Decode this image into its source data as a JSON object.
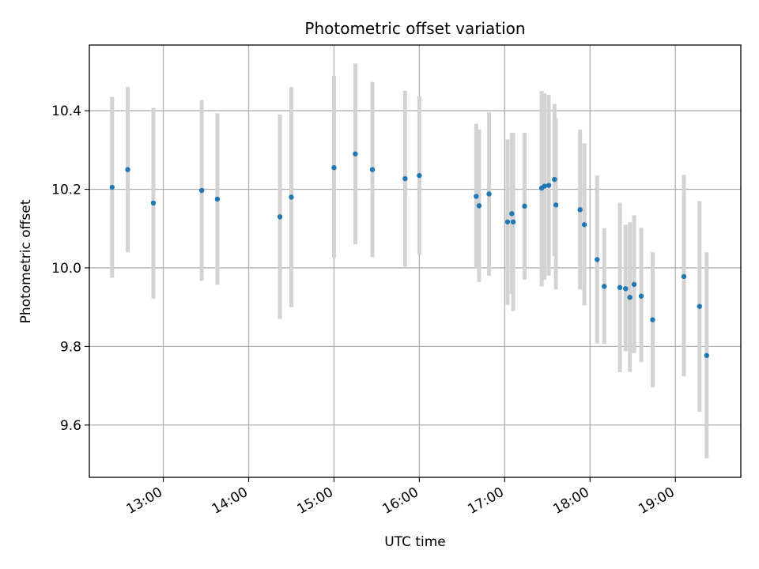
{
  "chart_data": {
    "type": "scatter",
    "title": "Photometric offset variation",
    "xlabel": "UTC time",
    "ylabel": "Photometric offset",
    "x_type": "time",
    "x_ticks": [
      "13:00",
      "14:00",
      "15:00",
      "16:00",
      "17:00",
      "18:00",
      "19:00"
    ],
    "y_ticks": [
      9.6,
      9.8,
      10.0,
      10.2,
      10.4
    ],
    "y_tick_labels": [
      "9.6",
      "9.8",
      "10.0",
      "10.2",
      "10.4"
    ],
    "xlim": [
      "12:08",
      "19:46"
    ],
    "ylim": [
      9.467,
      10.567
    ],
    "grid": true,
    "point_color": "#1f77b4",
    "errorbar_color": "#d3d3d3",
    "points": [
      {
        "x": "12:24",
        "y": 10.205,
        "ylow": 9.975,
        "yhigh": 10.435
      },
      {
        "x": "12:35",
        "y": 10.25,
        "ylow": 10.04,
        "yhigh": 10.46
      },
      {
        "x": "12:53",
        "y": 10.165,
        "ylow": 9.922,
        "yhigh": 10.407
      },
      {
        "x": "13:27",
        "y": 10.197,
        "ylow": 9.967,
        "yhigh": 10.427
      },
      {
        "x": "13:38",
        "y": 10.175,
        "ylow": 9.957,
        "yhigh": 10.393
      },
      {
        "x": "14:22",
        "y": 10.13,
        "ylow": 9.87,
        "yhigh": 10.39
      },
      {
        "x": "14:30",
        "y": 10.18,
        "ylow": 9.9,
        "yhigh": 10.46
      },
      {
        "x": "15:00",
        "y": 10.255,
        "ylow": 10.025,
        "yhigh": 10.488
      },
      {
        "x": "15:15",
        "y": 10.29,
        "ylow": 10.06,
        "yhigh": 10.52
      },
      {
        "x": "15:27",
        "y": 10.25,
        "ylow": 10.027,
        "yhigh": 10.473
      },
      {
        "x": "15:50",
        "y": 10.227,
        "ylow": 10.003,
        "yhigh": 10.451
      },
      {
        "x": "16:00",
        "y": 10.235,
        "ylow": 10.033,
        "yhigh": 10.437
      },
      {
        "x": "16:40",
        "y": 10.182,
        "ylow": 10.0,
        "yhigh": 10.367
      },
      {
        "x": "16:42",
        "y": 10.158,
        "ylow": 9.964,
        "yhigh": 10.352
      },
      {
        "x": "16:49",
        "y": 10.188,
        "ylow": 9.98,
        "yhigh": 10.396
      },
      {
        "x": "17:02",
        "y": 10.117,
        "ylow": 9.906,
        "yhigh": 10.327
      },
      {
        "x": "17:05",
        "y": 10.138,
        "ylow": 9.933,
        "yhigh": 10.343
      },
      {
        "x": "17:06",
        "y": 10.117,
        "ylow": 9.89,
        "yhigh": 10.344
      },
      {
        "x": "17:14",
        "y": 10.157,
        "ylow": 9.97,
        "yhigh": 10.344
      },
      {
        "x": "17:26",
        "y": 10.203,
        "ylow": 9.953,
        "yhigh": 10.45
      },
      {
        "x": "17:28",
        "y": 10.208,
        "ylow": 9.97,
        "yhigh": 10.444
      },
      {
        "x": "17:31",
        "y": 10.21,
        "ylow": 9.98,
        "yhigh": 10.44
      },
      {
        "x": "17:35",
        "y": 10.225,
        "ylow": 10.03,
        "yhigh": 10.417
      },
      {
        "x": "17:36",
        "y": 10.16,
        "ylow": 9.945,
        "yhigh": 10.381
      },
      {
        "x": "17:53",
        "y": 10.148,
        "ylow": 9.945,
        "yhigh": 10.352
      },
      {
        "x": "17:56",
        "y": 10.11,
        "ylow": 9.905,
        "yhigh": 10.317
      },
      {
        "x": "18:05",
        "y": 10.021,
        "ylow": 9.808,
        "yhigh": 10.235
      },
      {
        "x": "18:10",
        "y": 9.953,
        "ylow": 9.806,
        "yhigh": 10.101
      },
      {
        "x": "18:21",
        "y": 9.95,
        "ylow": 9.735,
        "yhigh": 10.166
      },
      {
        "x": "18:25",
        "y": 9.947,
        "ylow": 9.788,
        "yhigh": 10.11
      },
      {
        "x": "18:28",
        "y": 9.925,
        "ylow": 9.735,
        "yhigh": 10.116
      },
      {
        "x": "18:31",
        "y": 9.958,
        "ylow": 9.783,
        "yhigh": 10.134
      },
      {
        "x": "18:36",
        "y": 9.928,
        "ylow": 9.76,
        "yhigh": 10.102
      },
      {
        "x": "18:44",
        "y": 9.868,
        "ylow": 9.696,
        "yhigh": 10.04
      },
      {
        "x": "19:06",
        "y": 9.978,
        "ylow": 9.724,
        "yhigh": 10.237
      },
      {
        "x": "19:17",
        "y": 9.902,
        "ylow": 9.634,
        "yhigh": 10.17
      },
      {
        "x": "19:22",
        "y": 9.777,
        "ylow": 9.515,
        "yhigh": 10.04
      }
    ]
  }
}
